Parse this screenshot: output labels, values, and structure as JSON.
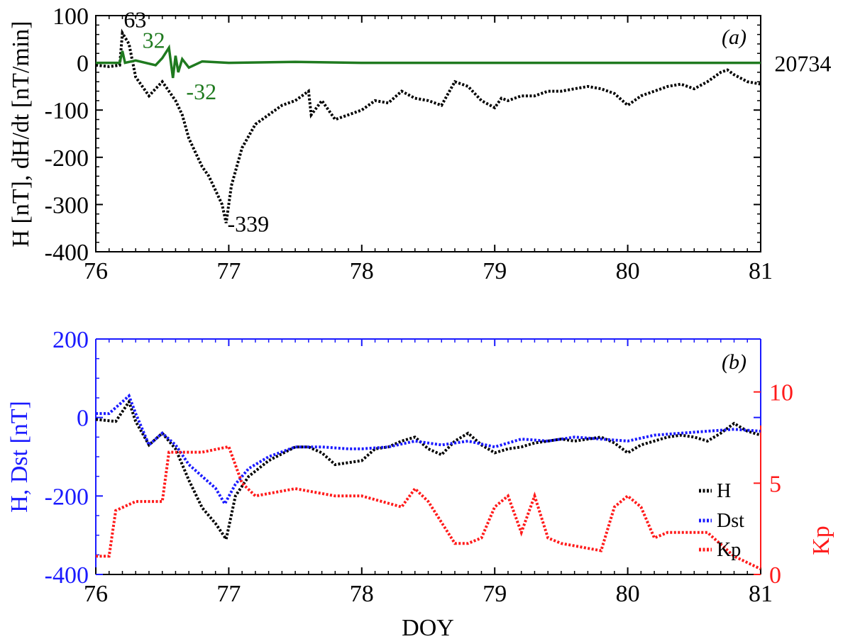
{
  "chart_data": [
    {
      "panel": "a",
      "type": "line",
      "panel_label": "(a)",
      "ylabel": "H [nT], dH/dt [nT/min]",
      "xlabel": "",
      "xlim": [
        76,
        81
      ],
      "ylim": [
        -400,
        100
      ],
      "xticks": [
        76,
        77,
        78,
        79,
        80,
        81
      ],
      "yticks": [
        100,
        0,
        -100,
        -200,
        -300,
        -400
      ],
      "series": [
        {
          "name": "H",
          "color": "#000000",
          "style": "dotted",
          "x": [
            76.0,
            76.1,
            76.18,
            76.2,
            76.25,
            76.3,
            76.35,
            76.4,
            76.45,
            76.5,
            76.55,
            76.6,
            76.65,
            76.7,
            76.75,
            76.8,
            76.85,
            76.9,
            76.95,
            76.98,
            77.02,
            77.1,
            77.2,
            77.3,
            77.4,
            77.5,
            77.6,
            77.62,
            77.7,
            77.8,
            77.9,
            78.0,
            78.1,
            78.2,
            78.3,
            78.4,
            78.5,
            78.6,
            78.7,
            78.8,
            78.9,
            79.0,
            79.05,
            79.1,
            79.2,
            79.3,
            79.4,
            79.5,
            79.6,
            79.7,
            79.8,
            79.9,
            80.0,
            80.05,
            80.1,
            80.2,
            80.3,
            80.4,
            80.5,
            80.6,
            80.7,
            80.75,
            80.8,
            80.9,
            81.0
          ],
          "y": [
            -5,
            -8,
            -5,
            63,
            40,
            -30,
            -50,
            -70,
            -55,
            -40,
            -60,
            -80,
            -110,
            -160,
            -190,
            -220,
            -240,
            -270,
            -300,
            -339,
            -260,
            -180,
            -130,
            -110,
            -90,
            -80,
            -60,
            -110,
            -80,
            -120,
            -110,
            -100,
            -80,
            -85,
            -60,
            -75,
            -80,
            -90,
            -40,
            -50,
            -80,
            -95,
            -75,
            -80,
            -70,
            -70,
            -60,
            -60,
            -55,
            -50,
            -55,
            -65,
            -90,
            -80,
            -70,
            -60,
            -50,
            -45,
            -55,
            -40,
            -20,
            -15,
            -25,
            -40,
            -45
          ]
        },
        {
          "name": "dH/dt",
          "color": "#1f7a1f",
          "style": "solid",
          "x": [
            76.0,
            76.18,
            76.2,
            76.22,
            76.3,
            76.45,
            76.5,
            76.55,
            76.58,
            76.6,
            76.62,
            76.65,
            76.7,
            76.8,
            77.0,
            77.5,
            78.0,
            79.0,
            80.0,
            81.0
          ],
          "y": [
            0,
            0,
            25,
            0,
            5,
            -5,
            10,
            32,
            -32,
            15,
            -20,
            8,
            -10,
            3,
            0,
            2,
            0,
            0,
            0,
            0
          ]
        }
      ],
      "annotations": [
        {
          "text": "63",
          "x": 76.21,
          "y": 63
        },
        {
          "text": "32",
          "x": 76.35,
          "y": 32
        },
        {
          "text": "-32",
          "x": 76.68,
          "y": -32
        },
        {
          "text": "-339",
          "x": 76.99,
          "y": -339
        },
        {
          "text": "20734",
          "x": 81.05,
          "y": 0
        }
      ]
    },
    {
      "panel": "b",
      "type": "line",
      "panel_label": "(b)",
      "ylabel": "H, Dst [nT]",
      "y2label": "Kp",
      "xlabel": "DOY",
      "xlim": [
        76,
        81
      ],
      "ylim": [
        -400,
        200
      ],
      "y2lim": [
        0,
        12.9
      ],
      "xticks": [
        76,
        77,
        78,
        79,
        80,
        81
      ],
      "yticks": [
        200,
        0,
        -200,
        -400
      ],
      "y2ticks": [
        0,
        5,
        10
      ],
      "legend_position": "lower-right",
      "series": [
        {
          "name": "H",
          "color": "#000000",
          "axis": "left",
          "style": "dotted",
          "x": [
            76.0,
            76.15,
            76.25,
            76.3,
            76.4,
            76.5,
            76.6,
            76.7,
            76.8,
            76.9,
            76.98,
            77.05,
            77.15,
            77.3,
            77.5,
            77.6,
            77.7,
            77.8,
            77.9,
            78.0,
            78.1,
            78.2,
            78.3,
            78.4,
            78.5,
            78.6,
            78.7,
            78.8,
            78.9,
            79.0,
            79.1,
            79.2,
            79.3,
            79.4,
            79.5,
            79.6,
            79.7,
            79.8,
            79.9,
            80.0,
            80.1,
            80.2,
            80.3,
            80.4,
            80.5,
            80.6,
            80.7,
            80.8,
            80.9,
            81.0
          ],
          "y": [
            -5,
            -10,
            40,
            -10,
            -70,
            -40,
            -80,
            -160,
            -230,
            -270,
            -310,
            -200,
            -150,
            -110,
            -75,
            -75,
            -90,
            -120,
            -115,
            -110,
            -80,
            -75,
            -60,
            -50,
            -80,
            -95,
            -60,
            -40,
            -70,
            -90,
            -80,
            -75,
            -65,
            -60,
            -55,
            -60,
            -55,
            -50,
            -65,
            -90,
            -70,
            -60,
            -50,
            -45,
            -50,
            -60,
            -40,
            -15,
            -35,
            -45
          ]
        },
        {
          "name": "Dst",
          "color": "#1a1aff",
          "axis": "left",
          "style": "dotted",
          "x": [
            76.0,
            76.1,
            76.25,
            76.3,
            76.4,
            76.5,
            76.6,
            76.7,
            76.8,
            76.9,
            76.97,
            77.05,
            77.15,
            77.3,
            77.5,
            77.7,
            77.9,
            78.0,
            78.2,
            78.4,
            78.6,
            78.8,
            79.0,
            79.2,
            79.4,
            79.6,
            79.8,
            80.0,
            80.2,
            80.4,
            80.6,
            80.8,
            81.0
          ],
          "y": [
            10,
            10,
            55,
            10,
            -70,
            -40,
            -70,
            -120,
            -150,
            -180,
            -220,
            -170,
            -130,
            -100,
            -75,
            -75,
            -80,
            -80,
            -75,
            -60,
            -70,
            -60,
            -75,
            -55,
            -60,
            -50,
            -55,
            -60,
            -45,
            -40,
            -35,
            -30,
            -35
          ]
        },
        {
          "name": "Kp",
          "color": "#ff1a1a",
          "axis": "right",
          "style": "dotted",
          "x": [
            76.0,
            76.1,
            76.15,
            76.3,
            76.5,
            76.55,
            76.6,
            76.8,
            77.0,
            77.1,
            77.2,
            77.5,
            77.8,
            78.0,
            78.3,
            78.4,
            78.5,
            78.7,
            78.8,
            78.9,
            79.0,
            79.1,
            79.2,
            79.3,
            79.4,
            79.5,
            79.8,
            79.9,
            80.0,
            80.1,
            80.2,
            80.3,
            80.6,
            80.8,
            81.0
          ],
          "y": [
            1,
            1,
            3.5,
            4,
            4,
            6.7,
            6.7,
            6.7,
            7,
            5,
            4.3,
            4.7,
            4.3,
            4.3,
            3.7,
            4.7,
            4,
            1.7,
            1.7,
            2,
            3.7,
            4.3,
            2.3,
            4.3,
            2,
            1.7,
            1.3,
            3.7,
            4.3,
            3.7,
            2,
            2.3,
            2.3,
            1,
            0.3
          ]
        }
      ]
    }
  ]
}
